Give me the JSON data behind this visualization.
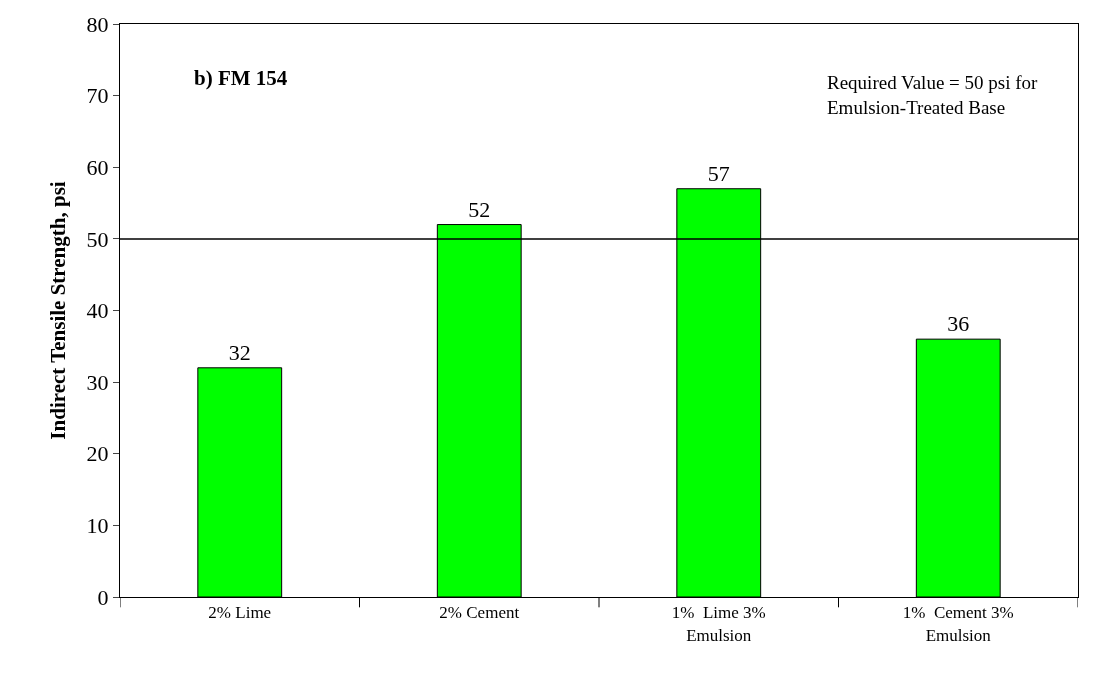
{
  "chart_data": {
    "type": "bar",
    "title": "b) FM 154",
    "ylabel": "Indirect Tensile Strength, psi",
    "categories": [
      "2% Lime",
      "2% Cement",
      "1%  Lime 3%\nEmulsion",
      "1%  Cement 3%\nEmulsion"
    ],
    "values": [
      32,
      52,
      57,
      36
    ],
    "color": "#00ff00",
    "data_labels": true,
    "ylim": [
      0,
      80
    ],
    "yticks": [
      0,
      10,
      20,
      30,
      40,
      50,
      60,
      70,
      80
    ],
    "legend": false,
    "ref_lines": [
      {
        "axis": "y",
        "value": 50,
        "color": "#000000"
      }
    ],
    "annotations": [
      "Required Value = 50 psi for\nEmulsion-Treated Base"
    ]
  }
}
